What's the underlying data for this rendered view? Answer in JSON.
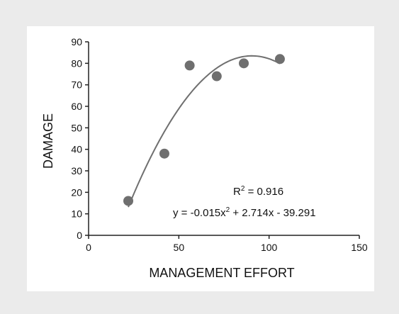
{
  "colors": {
    "background": "#ebebeb",
    "panel": "#ffffff",
    "marker": "#6f6f6f",
    "curve": "#6f6f6f",
    "axis": "#222222"
  },
  "chart_data": {
    "type": "scatter",
    "xlabel": "MANAGEMENT EFFORT",
    "ylabel": "DAMAGE",
    "xlim": [
      0,
      150
    ],
    "ylim": [
      0,
      90
    ],
    "x_ticks": [
      0,
      50,
      100,
      150
    ],
    "y_ticks": [
      0,
      10,
      20,
      30,
      40,
      50,
      60,
      70,
      80,
      90
    ],
    "grid": false,
    "legend": "none",
    "series": [
      {
        "x": [
          22,
          42,
          56,
          71,
          86,
          106
        ],
        "y": [
          16,
          38,
          79,
          74,
          80,
          82
        ]
      }
    ],
    "trendline": {
      "type": "polynomial",
      "order": 2,
      "coefficients": [
        -0.015,
        2.714,
        -39.291
      ],
      "x_range": [
        22,
        106
      ]
    },
    "annotations": {
      "r2_prefix": "R",
      "r2_superscript": "2",
      "r2_value": " = 0.916",
      "eq_part1": "y = -0.015x",
      "eq_superscript": "2",
      "eq_part2": " + 2.714x - 39.291"
    }
  }
}
